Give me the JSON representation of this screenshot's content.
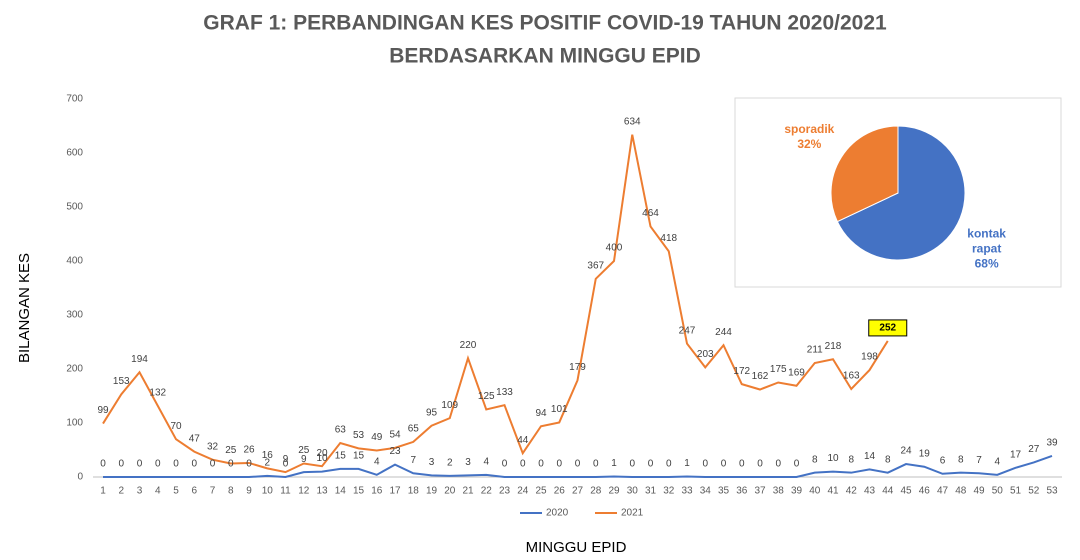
{
  "chart_data": [
    {
      "type": "line",
      "title": [
        "GRAF 1: PERBANDINGAN KES POSITIF COVID-19 TAHUN 2020/2021",
        "BERDASARKAN MINGGU EPID"
      ],
      "x_label": "MINGGU EPID",
      "y_label": "BILANGAN KES",
      "categories": [
        "1",
        "2",
        "3",
        "4",
        "5",
        "6",
        "7",
        "8",
        "9",
        "10",
        "11",
        "12",
        "13",
        "14",
        "15",
        "16",
        "17",
        "18",
        "19",
        "20",
        "21",
        "22",
        "23",
        "24",
        "25",
        "26",
        "27",
        "28",
        "29",
        "30",
        "31",
        "32",
        "33",
        "34",
        "35",
        "36",
        "37",
        "38",
        "39",
        "40",
        "41",
        "42",
        "43",
        "44",
        "45",
        "46",
        "47",
        "48",
        "49",
        "50",
        "51",
        "52",
        "53"
      ],
      "series": [
        {
          "name": "2020",
          "color": "#4472c4",
          "values": [
            0,
            0,
            0,
            0,
            0,
            0,
            0,
            0,
            0,
            2,
            0,
            9,
            10,
            15,
            15,
            4,
            23,
            7,
            3,
            2,
            3,
            4,
            0,
            0,
            0,
            0,
            0,
            0,
            1,
            0,
            0,
            0,
            1,
            0,
            0,
            0,
            0,
            0,
            0,
            8,
            10,
            8,
            14,
            8,
            24,
            19,
            6,
            8,
            7,
            4,
            17,
            27,
            39
          ]
        },
        {
          "name": "2021",
          "color": "#ed7d31",
          "values": [
            99,
            153,
            194,
            132,
            70,
            47,
            32,
            25,
            26,
            16,
            9,
            25,
            20,
            63,
            53,
            49,
            54,
            65,
            95,
            109,
            220,
            125,
            133,
            44,
            94,
            101,
            179,
            367,
            400,
            634,
            464,
            418,
            247,
            203,
            244,
            172,
            162,
            175,
            169,
            211,
            218,
            163,
            198,
            252,
            null,
            null,
            null,
            null,
            null,
            null,
            null,
            null,
            null
          ]
        }
      ],
      "highlight": {
        "series": 1,
        "index": 43,
        "color": "#ffff00"
      },
      "ylim": [
        0,
        700
      ],
      "yticks": [
        0,
        100,
        200,
        300,
        400,
        500,
        600,
        700
      ],
      "legend": "bottom"
    },
    {
      "type": "pie",
      "categories": [
        "kontak rapat",
        "sporadik"
      ],
      "values": [
        68,
        32
      ],
      "value_labels": [
        "68%",
        "32%"
      ],
      "colors": [
        "#4472c4",
        "#ed7d31"
      ]
    }
  ]
}
